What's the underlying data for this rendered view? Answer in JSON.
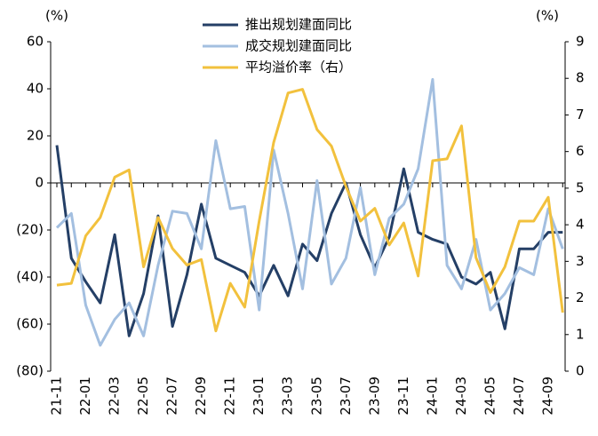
{
  "chart_data": {
    "type": "line",
    "y_unit": "(%)",
    "y2_unit": "(%)",
    "categories": [
      "21-11",
      null,
      "22-01",
      null,
      "22-03",
      null,
      "22-05",
      null,
      "22-07",
      null,
      "22-09",
      null,
      "22-11",
      null,
      "23-01",
      null,
      "23-03",
      null,
      "23-05",
      null,
      "23-07",
      null,
      "23-09",
      null,
      "23-11",
      null,
      "24-01",
      null,
      "24-03",
      null,
      "24-05",
      null,
      "24-07",
      null,
      "24-09",
      null
    ],
    "series": [
      {
        "name": "推出规划建面同比",
        "color": "#243f66",
        "values": [
          16,
          -32,
          -42,
          -51,
          -22,
          -65,
          -47,
          -14,
          -61,
          -39,
          -9,
          -32,
          -35,
          -38,
          -48,
          -35,
          -48,
          -26,
          -33,
          -13,
          0,
          -22,
          -36,
          -23,
          6,
          -21,
          -24,
          -26,
          -40,
          -43,
          -38,
          -62,
          -28,
          -28,
          -21,
          -21
        ]
      },
      {
        "name": "成交规划建面同比",
        "color": "#a3bfe0",
        "values": [
          -19,
          -13,
          -52,
          -69,
          -58,
          -51,
          -65,
          -35,
          -12,
          -13,
          -28,
          18,
          -11,
          -10,
          -54,
          14,
          -13,
          -45,
          1,
          -43,
          -32,
          -2,
          -39,
          -15,
          -9,
          6,
          44,
          -35,
          -45,
          -24,
          -54,
          -47,
          -36,
          -39,
          -11,
          -28
        ]
      },
      {
        "name": "平均溢价率（右）",
        "color": "#f2c13d",
        "axis": "y2",
        "values": [
          2.35,
          2.4,
          3.7,
          4.2,
          5.3,
          5.5,
          2.85,
          4.2,
          3.35,
          2.9,
          3.05,
          1.1,
          2.4,
          1.75,
          4.1,
          6.25,
          7.6,
          7.7,
          6.6,
          6.15,
          5.05,
          4.1,
          4.45,
          3.45,
          4.05,
          2.6,
          5.75,
          5.8,
          6.7,
          3.1,
          2.15,
          2.85,
          4.1,
          4.1,
          4.75,
          1.6
        ]
      }
    ],
    "ylim": [
      -80,
      60
    ],
    "yticks": [
      {
        "value": -80,
        "label": "(80)"
      },
      {
        "value": -60,
        "label": "(60)"
      },
      {
        "value": -40,
        "label": "(40)"
      },
      {
        "value": -20,
        "label": "(20)"
      },
      0,
      20,
      40,
      60
    ],
    "y2lim": [
      0,
      9
    ],
    "y2ticks": [
      0,
      1,
      2,
      3,
      4,
      5,
      6,
      7,
      8,
      9
    ]
  }
}
